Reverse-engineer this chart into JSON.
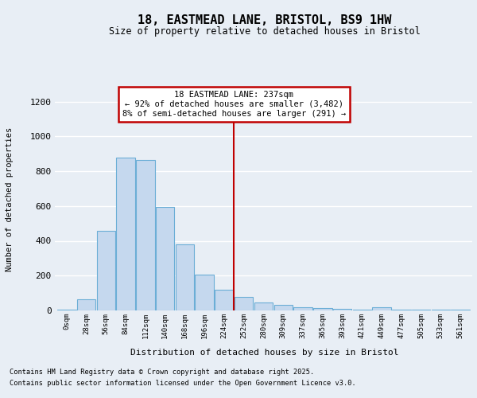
{
  "title_line1": "18, EASTMEAD LANE, BRISTOL, BS9 1HW",
  "title_line2": "Size of property relative to detached houses in Bristol",
  "xlabel": "Distribution of detached houses by size in Bristol",
  "ylabel": "Number of detached properties",
  "categories": [
    "0sqm",
    "28sqm",
    "56sqm",
    "84sqm",
    "112sqm",
    "140sqm",
    "168sqm",
    "196sqm",
    "224sqm",
    "252sqm",
    "280sqm",
    "309sqm",
    "337sqm",
    "365sqm",
    "393sqm",
    "421sqm",
    "449sqm",
    "477sqm",
    "505sqm",
    "533sqm",
    "561sqm"
  ],
  "bar_values": [
    5,
    62,
    455,
    880,
    865,
    595,
    380,
    205,
    120,
    80,
    48,
    32,
    18,
    12,
    10,
    5,
    20,
    5,
    4,
    3,
    3
  ],
  "bar_color": "#c5d8ee",
  "bar_edge_color": "#6baed6",
  "vline_x_index": 8.5,
  "vline_color": "#c00000",
  "annotation_text": "18 EASTMEAD LANE: 237sqm\n← 92% of detached houses are smaller (3,482)\n8% of semi-detached houses are larger (291) →",
  "annotation_box_color": "#ffffff",
  "annotation_box_edge": "#c00000",
  "ylim": [
    0,
    1280
  ],
  "yticks": [
    0,
    200,
    400,
    600,
    800,
    1000,
    1200
  ],
  "footer_line1": "Contains HM Land Registry data © Crown copyright and database right 2025.",
  "footer_line2": "Contains public sector information licensed under the Open Government Licence v3.0.",
  "bg_color": "#e8eef5",
  "plot_bg_color": "#e8eef5",
  "grid_color": "#ffffff"
}
